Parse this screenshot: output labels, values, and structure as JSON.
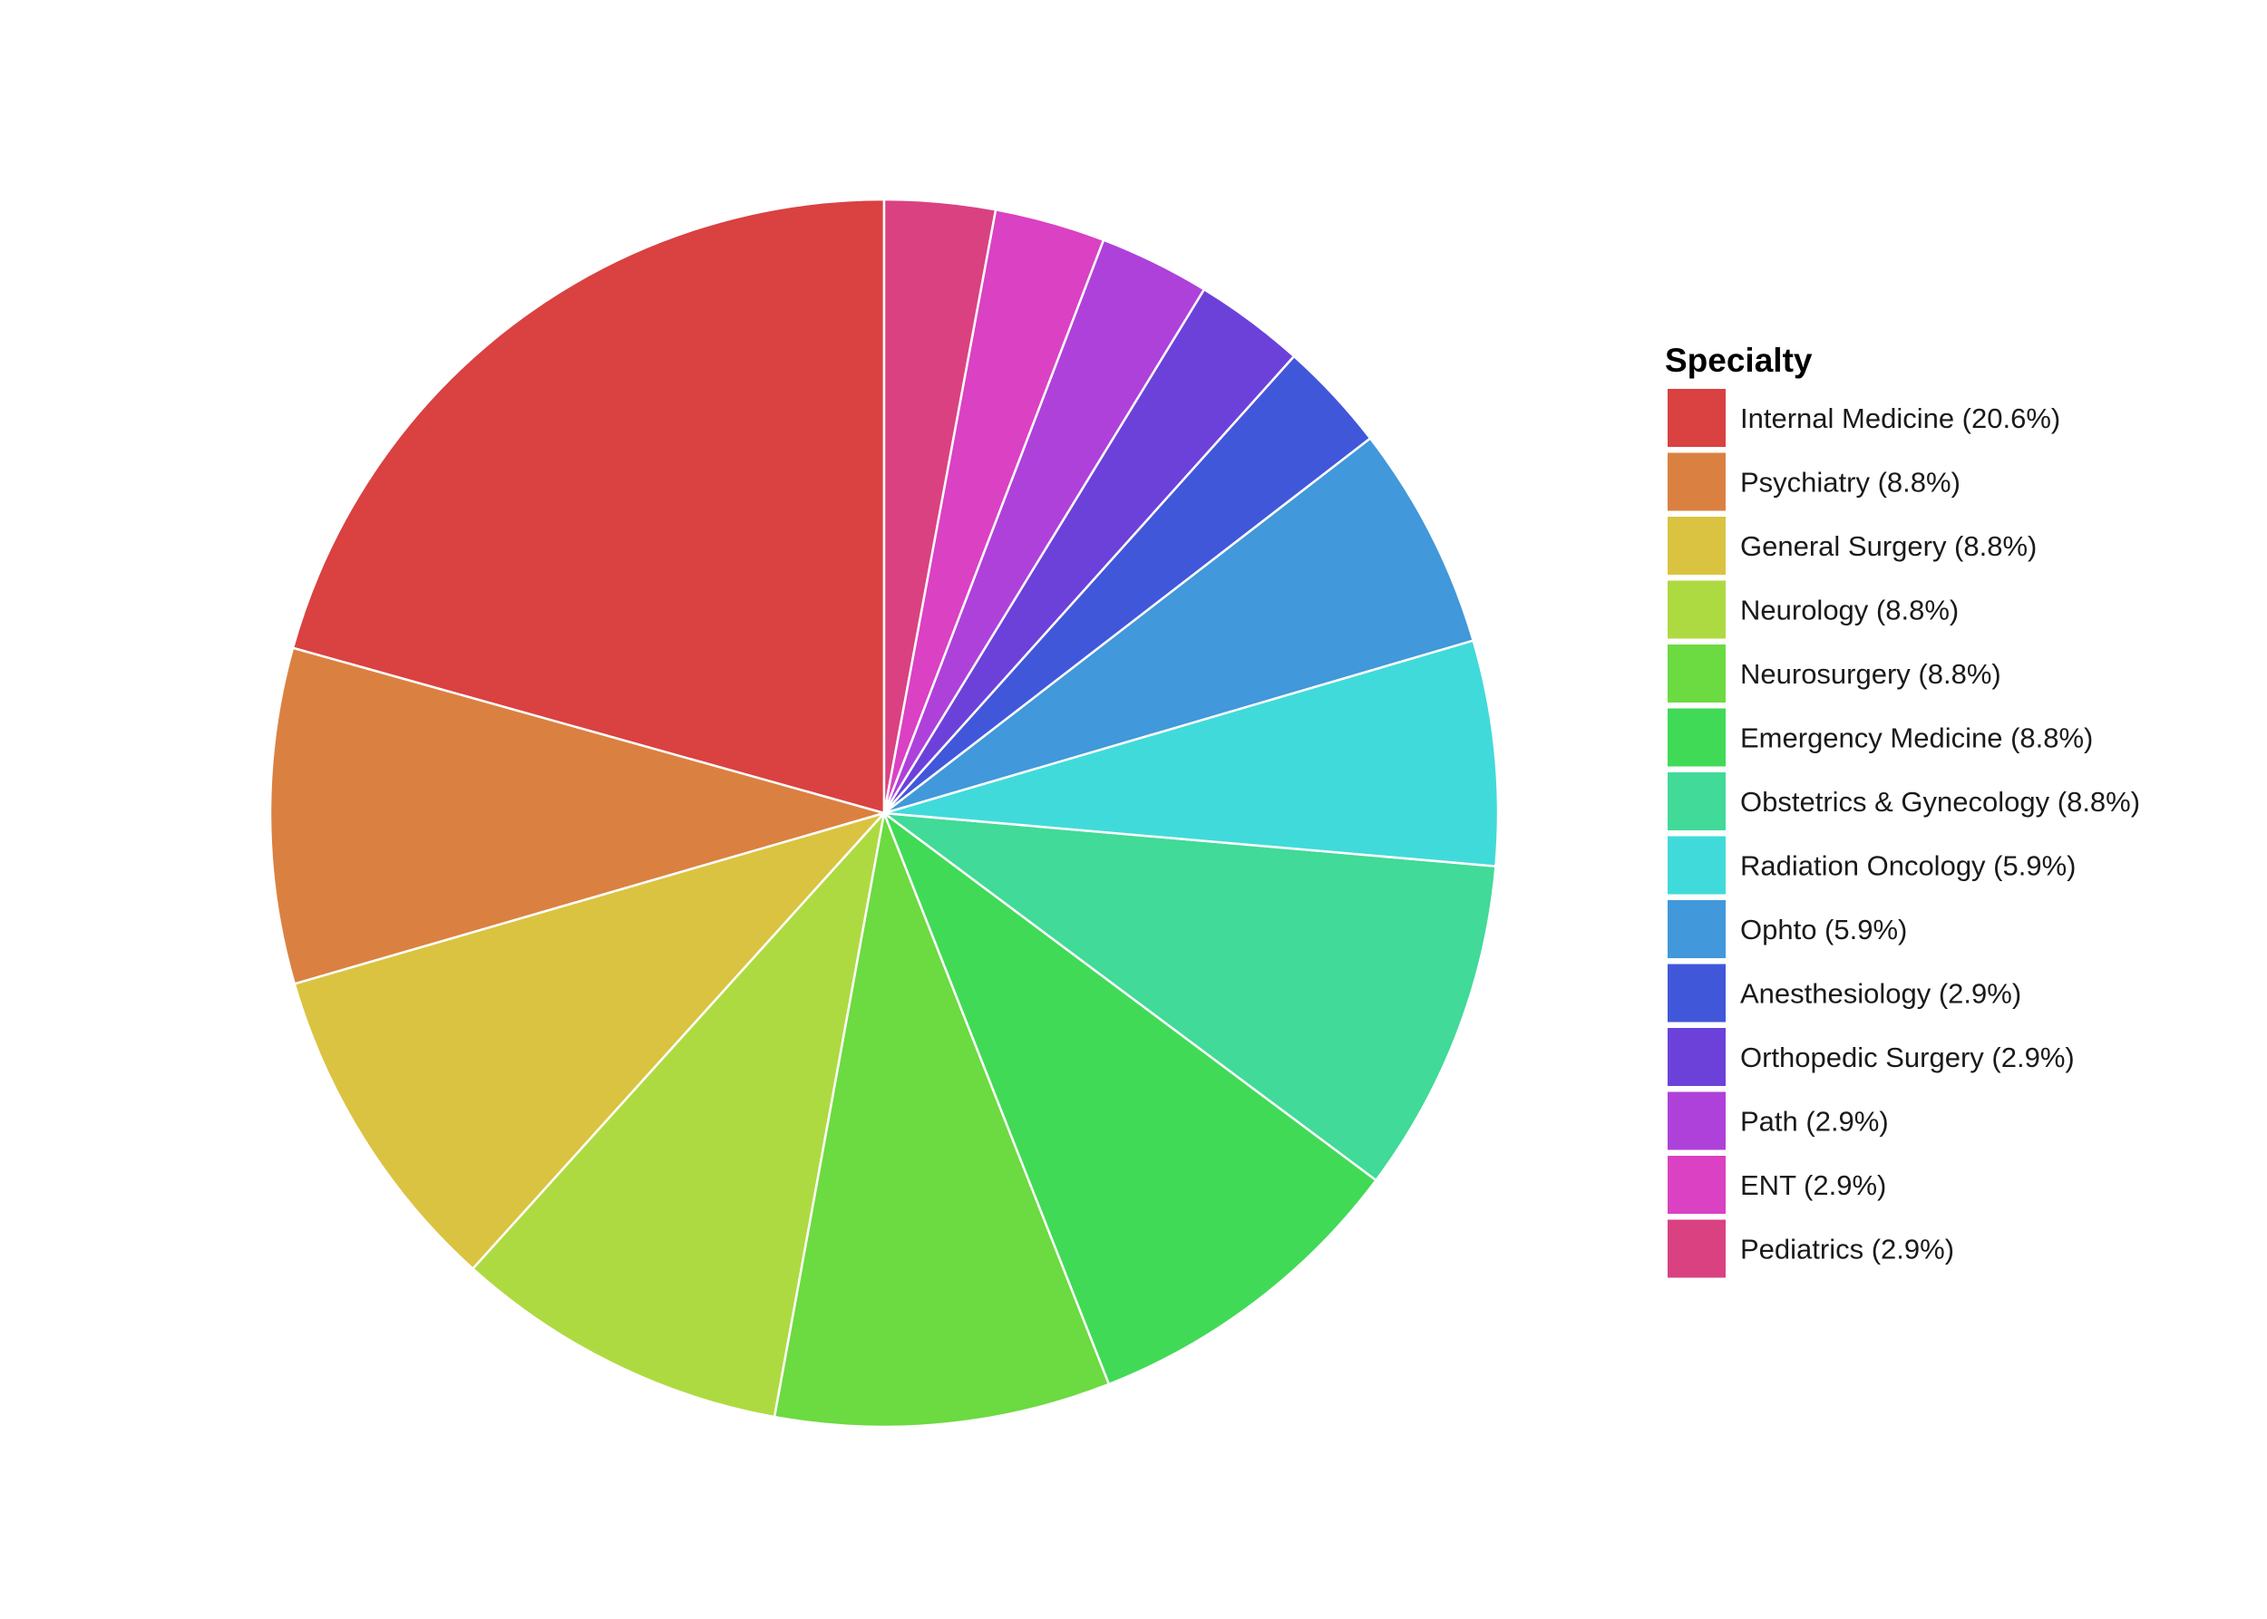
{
  "chart_data": {
    "type": "pie",
    "legend_title": "Specialty",
    "legend_position": "right",
    "start_angle": "12 o'clock",
    "direction": "counterclockwise",
    "slices": [
      {
        "label": "Internal Medicine (20.6%)",
        "value": 20.6,
        "color": "#DA4141"
      },
      {
        "label": "Psychiatry (8.8%)",
        "value": 8.8,
        "color": "#DA8141"
      },
      {
        "label": "General Surgery (8.8%)",
        "value": 8.8,
        "color": "#DAC341"
      },
      {
        "label": "Neurology (8.8%)",
        "value": 8.8,
        "color": "#AEDA41"
      },
      {
        "label": "Neurosurgery (8.8%)",
        "value": 8.8,
        "color": "#6CDA41"
      },
      {
        "label": "Emergency Medicine (8.8%)",
        "value": 8.8,
        "color": "#41DA57"
      },
      {
        "label": "Obstetrics & Gynecology (8.8%)",
        "value": 8.8,
        "color": "#41DA98"
      },
      {
        "label": "Radiation Oncology (5.9%)",
        "value": 5.9,
        "color": "#41DADA"
      },
      {
        "label": "Ophto (5.9%)",
        "value": 5.9,
        "color": "#4198DA"
      },
      {
        "label": "Anesthesiology (2.9%)",
        "value": 2.9,
        "color": "#4157DA"
      },
      {
        "label": "Orthopedic Surgery (2.9%)",
        "value": 2.9,
        "color": "#6C41DA"
      },
      {
        "label": "Path (2.9%)",
        "value": 2.9,
        "color": "#AE41DA"
      },
      {
        "label": "ENT (2.9%)",
        "value": 2.9,
        "color": "#DA41C3"
      },
      {
        "label": "Pediatrics (2.9%)",
        "value": 2.9,
        "color": "#DA4181"
      }
    ]
  }
}
